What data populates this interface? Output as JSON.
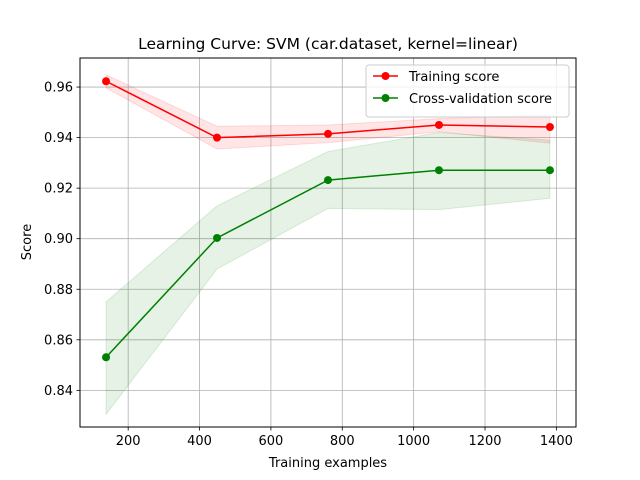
{
  "chart_data": {
    "type": "line",
    "title": "Learning Curve: SVM (car.dataset, kernel=linear)",
    "xlabel": "Training examples",
    "ylabel": "Score",
    "xlim": [
      65,
      1455
    ],
    "ylim": [
      0.8255,
      0.9715
    ],
    "xticks": [
      200,
      400,
      600,
      800,
      1000,
      1200,
      1400
    ],
    "yticks": [
      0.84,
      0.86,
      0.88,
      0.9,
      0.92,
      0.94,
      0.96
    ],
    "ytick_labels": [
      "0.84",
      "0.86",
      "0.88",
      "0.90",
      "0.92",
      "0.94",
      "0.96"
    ],
    "grid": true,
    "legend_position": "top-right",
    "x": [
      138,
      449,
      760,
      1071,
      1382
    ],
    "series": [
      {
        "name": "Training score",
        "color": "#ff0000",
        "band_color": "#ff0000",
        "values": [
          0.9623,
          0.94,
          0.9415,
          0.945,
          0.9442
        ],
        "upper": [
          0.9648,
          0.9445,
          0.945,
          0.9475,
          0.949
        ],
        "lower": [
          0.9597,
          0.9355,
          0.938,
          0.9423,
          0.9378
        ]
      },
      {
        "name": "Cross-validation score",
        "color": "#008000",
        "band_color": "#008000",
        "values": [
          0.8531,
          0.9003,
          0.9232,
          0.9271,
          0.9271
        ],
        "upper": [
          0.875,
          0.913,
          0.9345,
          0.942,
          0.939
        ],
        "lower": [
          0.8305,
          0.888,
          0.912,
          0.9115,
          0.916
        ]
      }
    ]
  }
}
